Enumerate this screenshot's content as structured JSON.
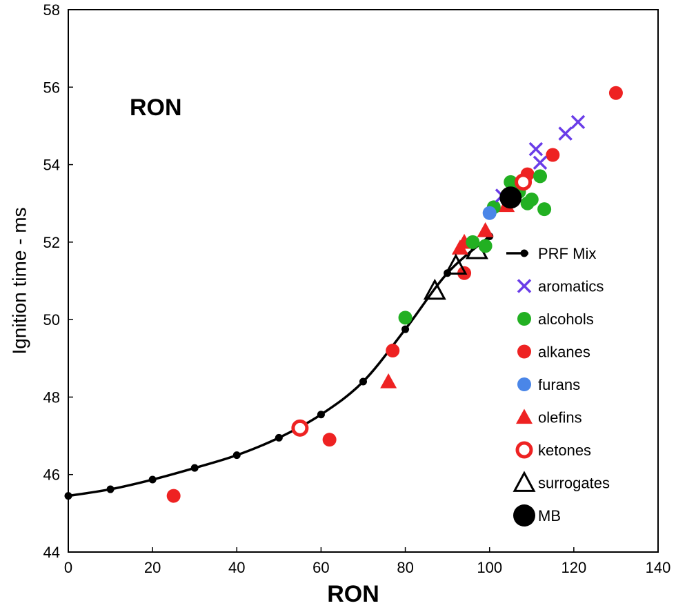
{
  "chart_data": {
    "type": "scatter",
    "title": "RON",
    "xlabel": "RON",
    "ylabel": "Ignition time - ms",
    "xlim": [
      0,
      140
    ],
    "ylim": [
      44,
      58
    ],
    "xticks": [
      "0",
      "20",
      "40",
      "60",
      "80",
      "100",
      "120",
      "140"
    ],
    "yticks": [
      "44",
      "46",
      "48",
      "50",
      "52",
      "54",
      "56",
      "58"
    ],
    "grid": false,
    "legend_position": "right",
    "colors": {
      "prf": "#000000",
      "aromatics": "#6a3de8",
      "alcohols": "#22b022",
      "alkanes": "#ee2222",
      "furans": "#4a86e8",
      "olefins": "#ee2222",
      "ketones": "#ee2222",
      "surrogates": "#000000",
      "mb": "#000000"
    },
    "series": [
      {
        "name": "PRF Mix",
        "marker": "line-dot",
        "x": [
          0,
          10,
          20,
          30,
          40,
          50,
          60,
          70,
          80,
          90,
          100
        ],
        "y": [
          45.45,
          45.62,
          45.87,
          46.17,
          46.5,
          46.95,
          47.55,
          48.4,
          49.75,
          51.2,
          52.15
        ]
      },
      {
        "name": "aromatics",
        "marker": "x",
        "x": [
          103,
          111,
          112,
          118,
          121
        ],
        "y": [
          53.2,
          54.4,
          54.05,
          54.8,
          55.1
        ]
      },
      {
        "name": "alcohols",
        "marker": "circle",
        "x": [
          80,
          96,
          99,
          101,
          105,
          106,
          107,
          109,
          110,
          112,
          113
        ],
        "y": [
          50.05,
          52.0,
          51.9,
          52.9,
          53.55,
          53.2,
          53.3,
          53.0,
          53.1,
          53.7,
          52.85
        ]
      },
      {
        "name": "alkanes",
        "marker": "circle",
        "x": [
          25,
          62,
          77,
          94,
          109,
          115,
          130
        ],
        "y": [
          45.45,
          46.9,
          49.2,
          51.2,
          53.75,
          54.25,
          55.85
        ]
      },
      {
        "name": "furans",
        "marker": "circle",
        "x": [
          100
        ],
        "y": [
          52.75
        ]
      },
      {
        "name": "olefins",
        "marker": "triangle",
        "x": [
          76,
          93,
          94,
          99,
          104
        ],
        "y": [
          48.4,
          51.85,
          52.0,
          52.3,
          52.95
        ]
      },
      {
        "name": "ketones",
        "marker": "ring",
        "x": [
          55,
          108
        ],
        "y": [
          47.2,
          53.55
        ]
      },
      {
        "name": "surrogates",
        "marker": "open-triangle",
        "x": [
          87,
          92,
          97
        ],
        "y": [
          50.75,
          51.4,
          51.8
        ]
      },
      {
        "name": "MB",
        "marker": "big-circle",
        "x": [
          105
        ],
        "y": [
          53.15
        ]
      }
    ]
  }
}
